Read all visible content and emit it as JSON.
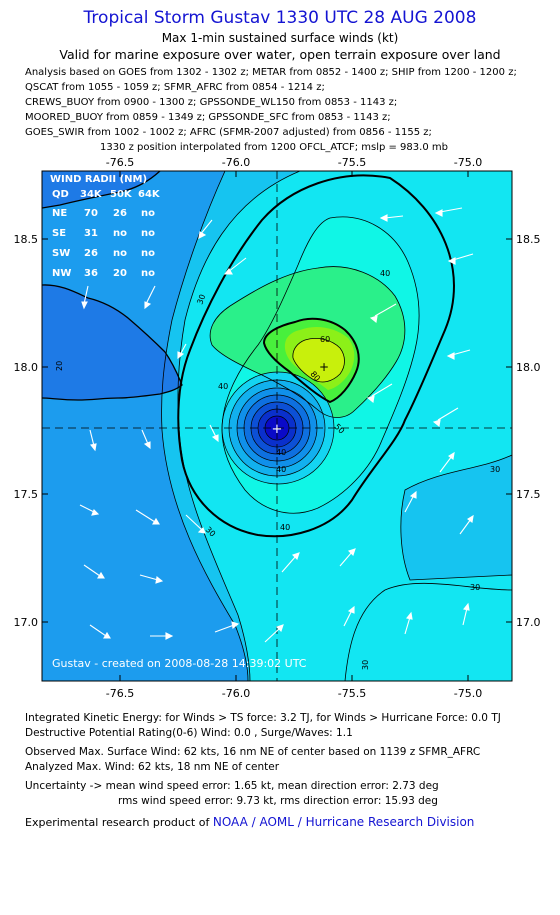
{
  "header": {
    "title": "Tropical Storm Gustav 1330 UTC 28 AUG 2008",
    "subtitle": "Max 1-min sustained surface winds (kt)",
    "valid": "Valid for marine exposure over water, open terrain exposure over land"
  },
  "analysis_lines": [
    "Analysis based on  GOES from 1302 - 1302 z;  METAR from 0852 - 1400 z;  SHIP from 1200 - 1200 z;",
    "QSCAT from 1055 - 1059 z;  SFMR_AFRC from 0854 - 1214 z;",
    "CREWS_BUOY from 0900 - 1300 z;  GPSSONDE_WL150 from 0853 - 1143 z;",
    "MOORED_BUOY from 0859 - 1349 z;  GPSSONDE_SFC from 0853 - 1143 z;",
    "GOES_SWIR from 1002 - 1002 z;  AFRC (SFMR-2007 adjusted) from 0856 - 1155 z;"
  ],
  "interp_line": "1330 z position interpolated from 1200 OFCL_ATCF; mslp = 983.0 mb",
  "map": {
    "lon_ticks": [
      "-76.5",
      "-76.0",
      "-75.5",
      "-75.0"
    ],
    "lat_ticks": [
      "18.5",
      "18.0",
      "17.5",
      "17.0"
    ],
    "wind_radii": {
      "title": "WIND RADII (NM)",
      "header": [
        "QD",
        "34K",
        "50K",
        "64K"
      ],
      "rows": [
        [
          "NE",
          "70",
          "26",
          "no"
        ],
        [
          "SE",
          "31",
          "no",
          "no"
        ],
        [
          "SW",
          "26",
          "no",
          "no"
        ],
        [
          "NW",
          "36",
          "20",
          "no"
        ]
      ]
    },
    "contour_labels": {
      "c20": "20",
      "c30a": "30",
      "c30b": "30",
      "c30c": "30",
      "c30d": "30",
      "c30e": "30",
      "c40a": "40",
      "c40b": "40",
      "c40c": "40",
      "c40d": "40",
      "c40e": "40",
      "c50": "50",
      "c60": "60",
      "c80": "80"
    },
    "credit": "Gustav - created on 2008-08-28 14:39:02 UTC",
    "colors": {
      "land": "#1e7ae6",
      "low": "#1c9cee",
      "mid": "#16c4f0",
      "high": "#12e6f2",
      "c40": "#10f6e6",
      "c50": "#2af08a",
      "c60": "#48f03c",
      "c70": "#8cf018",
      "c80": "#c8f00c",
      "core": "#0a0ac8"
    }
  },
  "footer": {
    "ike": "Integrated Kinetic Energy:  for Winds > TS force: 3.2 TJ,  for Winds > Hurricane Force: 0.0 TJ",
    "dpr": "Destructive Potential Rating(0-6)   Wind: 0.0 , Surge/Waves: 1.1",
    "obs_max": "Observed Max. Surface Wind: 62 kts, 16 nm NE of center based on 1139 z SFMR_AFRC",
    "ana_max": "Analyzed Max. Wind: 62 kts, 18 nm NE of center",
    "uncert1": "Uncertainty -> mean wind speed error: 1.65 kt,   mean direction error: 2.73 deg",
    "uncert2": "rms wind speed error: 9.73 kt,   rms direction error: 15.93 deg",
    "credit_prefix": "Experimental research product of",
    "credit_link": "NOAA / AOML / Hurricane Research Division"
  }
}
